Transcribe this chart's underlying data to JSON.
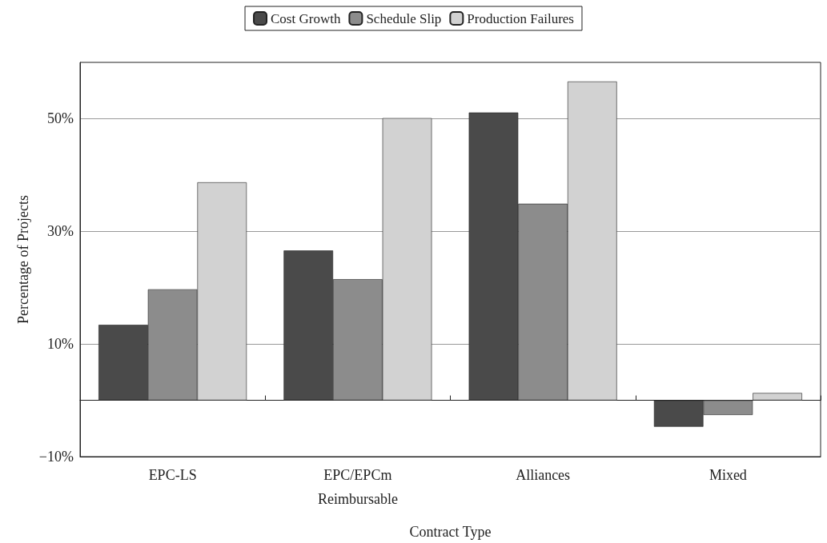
{
  "chart_data": {
    "type": "bar",
    "xlabel": "Contract Type",
    "ylabel": "Percentage of Projects",
    "categories": [
      "EPC-LS",
      "EPC/EPCm\nReimbursable",
      "Alliances",
      "Mixed"
    ],
    "series": [
      {
        "name": "Cost Growth",
        "color": "#4a4a4a",
        "values": [
          13.4,
          26.6,
          51.1,
          -4.7
        ]
      },
      {
        "name": "Schedule Slip",
        "color": "#8c8c8c",
        "values": [
          19.7,
          21.5,
          34.9,
          -2.6
        ]
      },
      {
        "name": "Production Failures",
        "color": "#d2d2d2",
        "values": [
          38.7,
          50.1,
          56.6,
          1.3
        ]
      }
    ],
    "ylim": [
      -10,
      60
    ],
    "yticks": [
      {
        "value": -10,
        "label": "−10%"
      },
      {
        "value": 10,
        "label": "10%"
      },
      {
        "value": 30,
        "label": "30%"
      },
      {
        "value": 50,
        "label": "50%"
      }
    ],
    "grid": "y",
    "legend": "top"
  }
}
